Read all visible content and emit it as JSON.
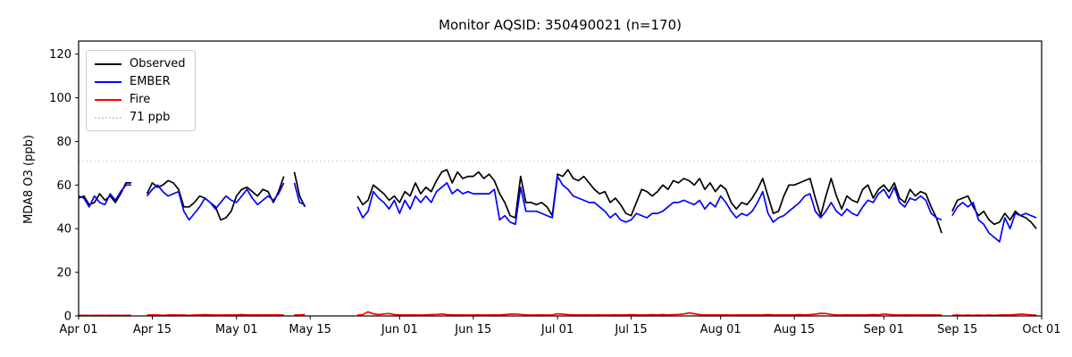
{
  "chart_data": {
    "type": "line",
    "title": "Monitor AQSID: 350490021 (n=170)",
    "ylabel": "MDA8 O3 (ppb)",
    "xlabel": "",
    "ylim": [
      0,
      126
    ],
    "y_ticks": [
      0,
      20,
      40,
      60,
      80,
      100,
      120
    ],
    "x_start": "Apr 01",
    "x_end": "Oct 01",
    "x_range_days": 183,
    "x_ticks": [
      {
        "label": "Apr 01",
        "day": 0
      },
      {
        "label": "Apr 15",
        "day": 14
      },
      {
        "label": "May 01",
        "day": 30
      },
      {
        "label": "May 15",
        "day": 44
      },
      {
        "label": "Jun 01",
        "day": 61
      },
      {
        "label": "Jun 15",
        "day": 75
      },
      {
        "label": "Jul 01",
        "day": 91
      },
      {
        "label": "Jul 15",
        "day": 105
      },
      {
        "label": "Aug 01",
        "day": 122
      },
      {
        "label": "Aug 15",
        "day": 136
      },
      {
        "label": "Sep 01",
        "day": 153
      },
      {
        "label": "Sep 15",
        "day": 167
      },
      {
        "label": "Oct 01",
        "day": 183
      }
    ],
    "grid": false,
    "legend_position": "upper left",
    "reference_line": {
      "label": "71 ppb",
      "value": 71,
      "color": "#d3d3d3",
      "style": "dotted"
    },
    "legend": [
      {
        "label": "Observed",
        "color": "#000000",
        "style": "solid"
      },
      {
        "label": "EMBER",
        "color": "#0000ff",
        "style": "solid"
      },
      {
        "label": "Fire",
        "color": "#ff0000",
        "style": "solid"
      },
      {
        "label": "71 ppb",
        "color": "#d3d3d3",
        "style": "dotted"
      }
    ],
    "n_observations": 170,
    "series": [
      {
        "name": "Observed",
        "color": "#000000",
        "values": [
          54,
          55,
          51,
          52,
          56,
          53,
          55,
          52,
          56,
          61,
          61,
          null,
          null,
          56,
          61,
          59,
          60,
          62,
          61,
          58,
          50,
          50,
          52,
          55,
          54,
          52,
          50,
          44,
          45,
          48,
          55,
          58,
          59,
          57,
          55,
          58,
          57,
          52,
          57,
          64,
          null,
          66,
          55,
          50,
          null,
          null,
          null,
          null,
          null,
          null,
          null,
          null,
          null,
          55,
          51,
          53,
          60,
          58,
          56,
          53,
          55,
          52,
          57,
          55,
          61,
          56,
          59,
          57,
          62,
          66,
          67,
          61,
          66,
          63,
          64,
          64,
          66,
          63,
          65,
          62,
          56,
          52,
          46,
          45,
          64,
          52,
          52,
          51,
          52,
          50,
          46,
          65,
          64,
          67,
          63,
          62,
          64,
          61,
          58,
          56,
          57,
          52,
          54,
          51,
          47,
          46,
          52,
          58,
          57,
          55,
          57,
          60,
          58,
          62,
          61,
          63,
          62,
          60,
          63,
          58,
          61,
          57,
          60,
          58,
          52,
          49,
          52,
          51,
          54,
          58,
          63,
          55,
          47,
          48,
          55,
          60,
          60,
          61,
          62,
          63,
          54,
          46,
          55,
          63,
          55,
          49,
          55,
          53,
          52,
          58,
          60,
          54,
          58,
          60,
          57,
          61,
          54,
          52,
          58,
          55,
          57,
          56,
          50,
          45,
          38,
          null,
          48,
          53,
          54,
          55,
          50,
          46,
          48,
          44,
          42,
          43,
          47,
          44,
          48,
          46,
          45,
          43,
          40
        ]
      },
      {
        "name": "EMBER",
        "color": "#0000ff",
        "values": [
          55,
          54,
          50,
          55,
          52,
          51,
          56,
          53,
          57,
          60,
          60,
          null,
          null,
          55,
          58,
          60,
          57,
          55,
          56,
          57,
          48,
          44,
          47,
          50,
          54,
          52,
          49,
          52,
          55,
          53,
          52,
          55,
          58,
          54,
          51,
          53,
          55,
          53,
          56,
          61,
          null,
          61,
          52,
          51,
          null,
          null,
          null,
          null,
          null,
          null,
          null,
          null,
          null,
          50,
          45,
          48,
          57,
          54,
          52,
          49,
          53,
          47,
          53,
          49,
          55,
          52,
          55,
          52,
          57,
          59,
          61,
          56,
          58,
          56,
          57,
          56,
          56,
          56,
          56,
          58,
          44,
          46,
          43,
          42,
          59,
          48,
          48,
          48,
          47,
          46,
          45,
          64,
          60,
          58,
          55,
          54,
          53,
          52,
          52,
          50,
          48,
          45,
          47,
          44,
          43,
          44,
          47,
          46,
          45,
          47,
          47,
          48,
          50,
          52,
          52,
          53,
          52,
          51,
          53,
          49,
          52,
          50,
          55,
          52,
          48,
          45,
          47,
          46,
          48,
          52,
          57,
          47,
          43,
          45,
          46,
          48,
          50,
          52,
          55,
          56,
          48,
          45,
          48,
          52,
          48,
          46,
          49,
          47,
          46,
          50,
          53,
          52,
          56,
          58,
          54,
          59,
          52,
          50,
          54,
          53,
          55,
          53,
          47,
          45,
          44,
          null,
          46,
          50,
          52,
          50,
          52,
          44,
          42,
          38,
          36,
          34,
          45,
          40,
          47,
          46,
          47,
          46,
          45
        ]
      },
      {
        "name": "Fire",
        "color": "#ff0000",
        "values": [
          0.3,
          0.3,
          0.2,
          0.3,
          0.3,
          0.2,
          0.3,
          0.3,
          0.2,
          0.3,
          0.3,
          null,
          null,
          0.4,
          0.5,
          0.4,
          0.3,
          0.4,
          0.5,
          0.4,
          0.4,
          0.3,
          0.4,
          0.5,
          0.6,
          0.5,
          0.4,
          0.4,
          0.5,
          0.4,
          0.5,
          0.6,
          0.5,
          0.4,
          0.5,
          0.4,
          0.5,
          0.4,
          0.5,
          0.4,
          null,
          0.5,
          0.4,
          0.6,
          null,
          null,
          null,
          null,
          null,
          null,
          null,
          null,
          null,
          0.4,
          0.6,
          1.9,
          1.0,
          0.6,
          0.9,
          1.1,
          0.6,
          0.5,
          0.4,
          0.5,
          0.4,
          0.4,
          0.5,
          0.6,
          0.7,
          0.9,
          0.6,
          0.5,
          0.4,
          0.5,
          0.4,
          0.4,
          0.5,
          0.4,
          0.4,
          0.5,
          0.4,
          0.6,
          0.8,
          0.9,
          0.7,
          0.5,
          0.4,
          0.4,
          0.5,
          0.4,
          0.5,
          1.0,
          0.8,
          0.6,
          0.5,
          0.4,
          0.5,
          0.4,
          0.4,
          0.5,
          0.4,
          0.4,
          0.5,
          0.4,
          0.5,
          0.6,
          0.5,
          0.4,
          0.5,
          0.6,
          0.5,
          0.6,
          0.5,
          0.6,
          0.7,
          0.9,
          1.4,
          1.0,
          0.6,
          0.5,
          0.4,
          0.5,
          0.4,
          0.5,
          0.4,
          0.4,
          0.5,
          0.4,
          0.5,
          0.4,
          0.5,
          0.6,
          0.5,
          0.4,
          0.5,
          0.4,
          0.5,
          0.6,
          0.5,
          0.6,
          0.8,
          1.2,
          1.1,
          0.7,
          0.5,
          0.4,
          0.5,
          0.4,
          0.5,
          0.4,
          0.5,
          0.6,
          0.5,
          0.9,
          0.7,
          0.5,
          0.4,
          0.5,
          0.4,
          0.4,
          0.5,
          0.4,
          0.5,
          0.4,
          0.4,
          null,
          0.3,
          0.4,
          0.3,
          0.4,
          0.3,
          0.4,
          0.3,
          0.4,
          0.3,
          0.4,
          0.5,
          0.4,
          0.6,
          0.8,
          0.7,
          0.5,
          0.4
        ]
      }
    ]
  }
}
